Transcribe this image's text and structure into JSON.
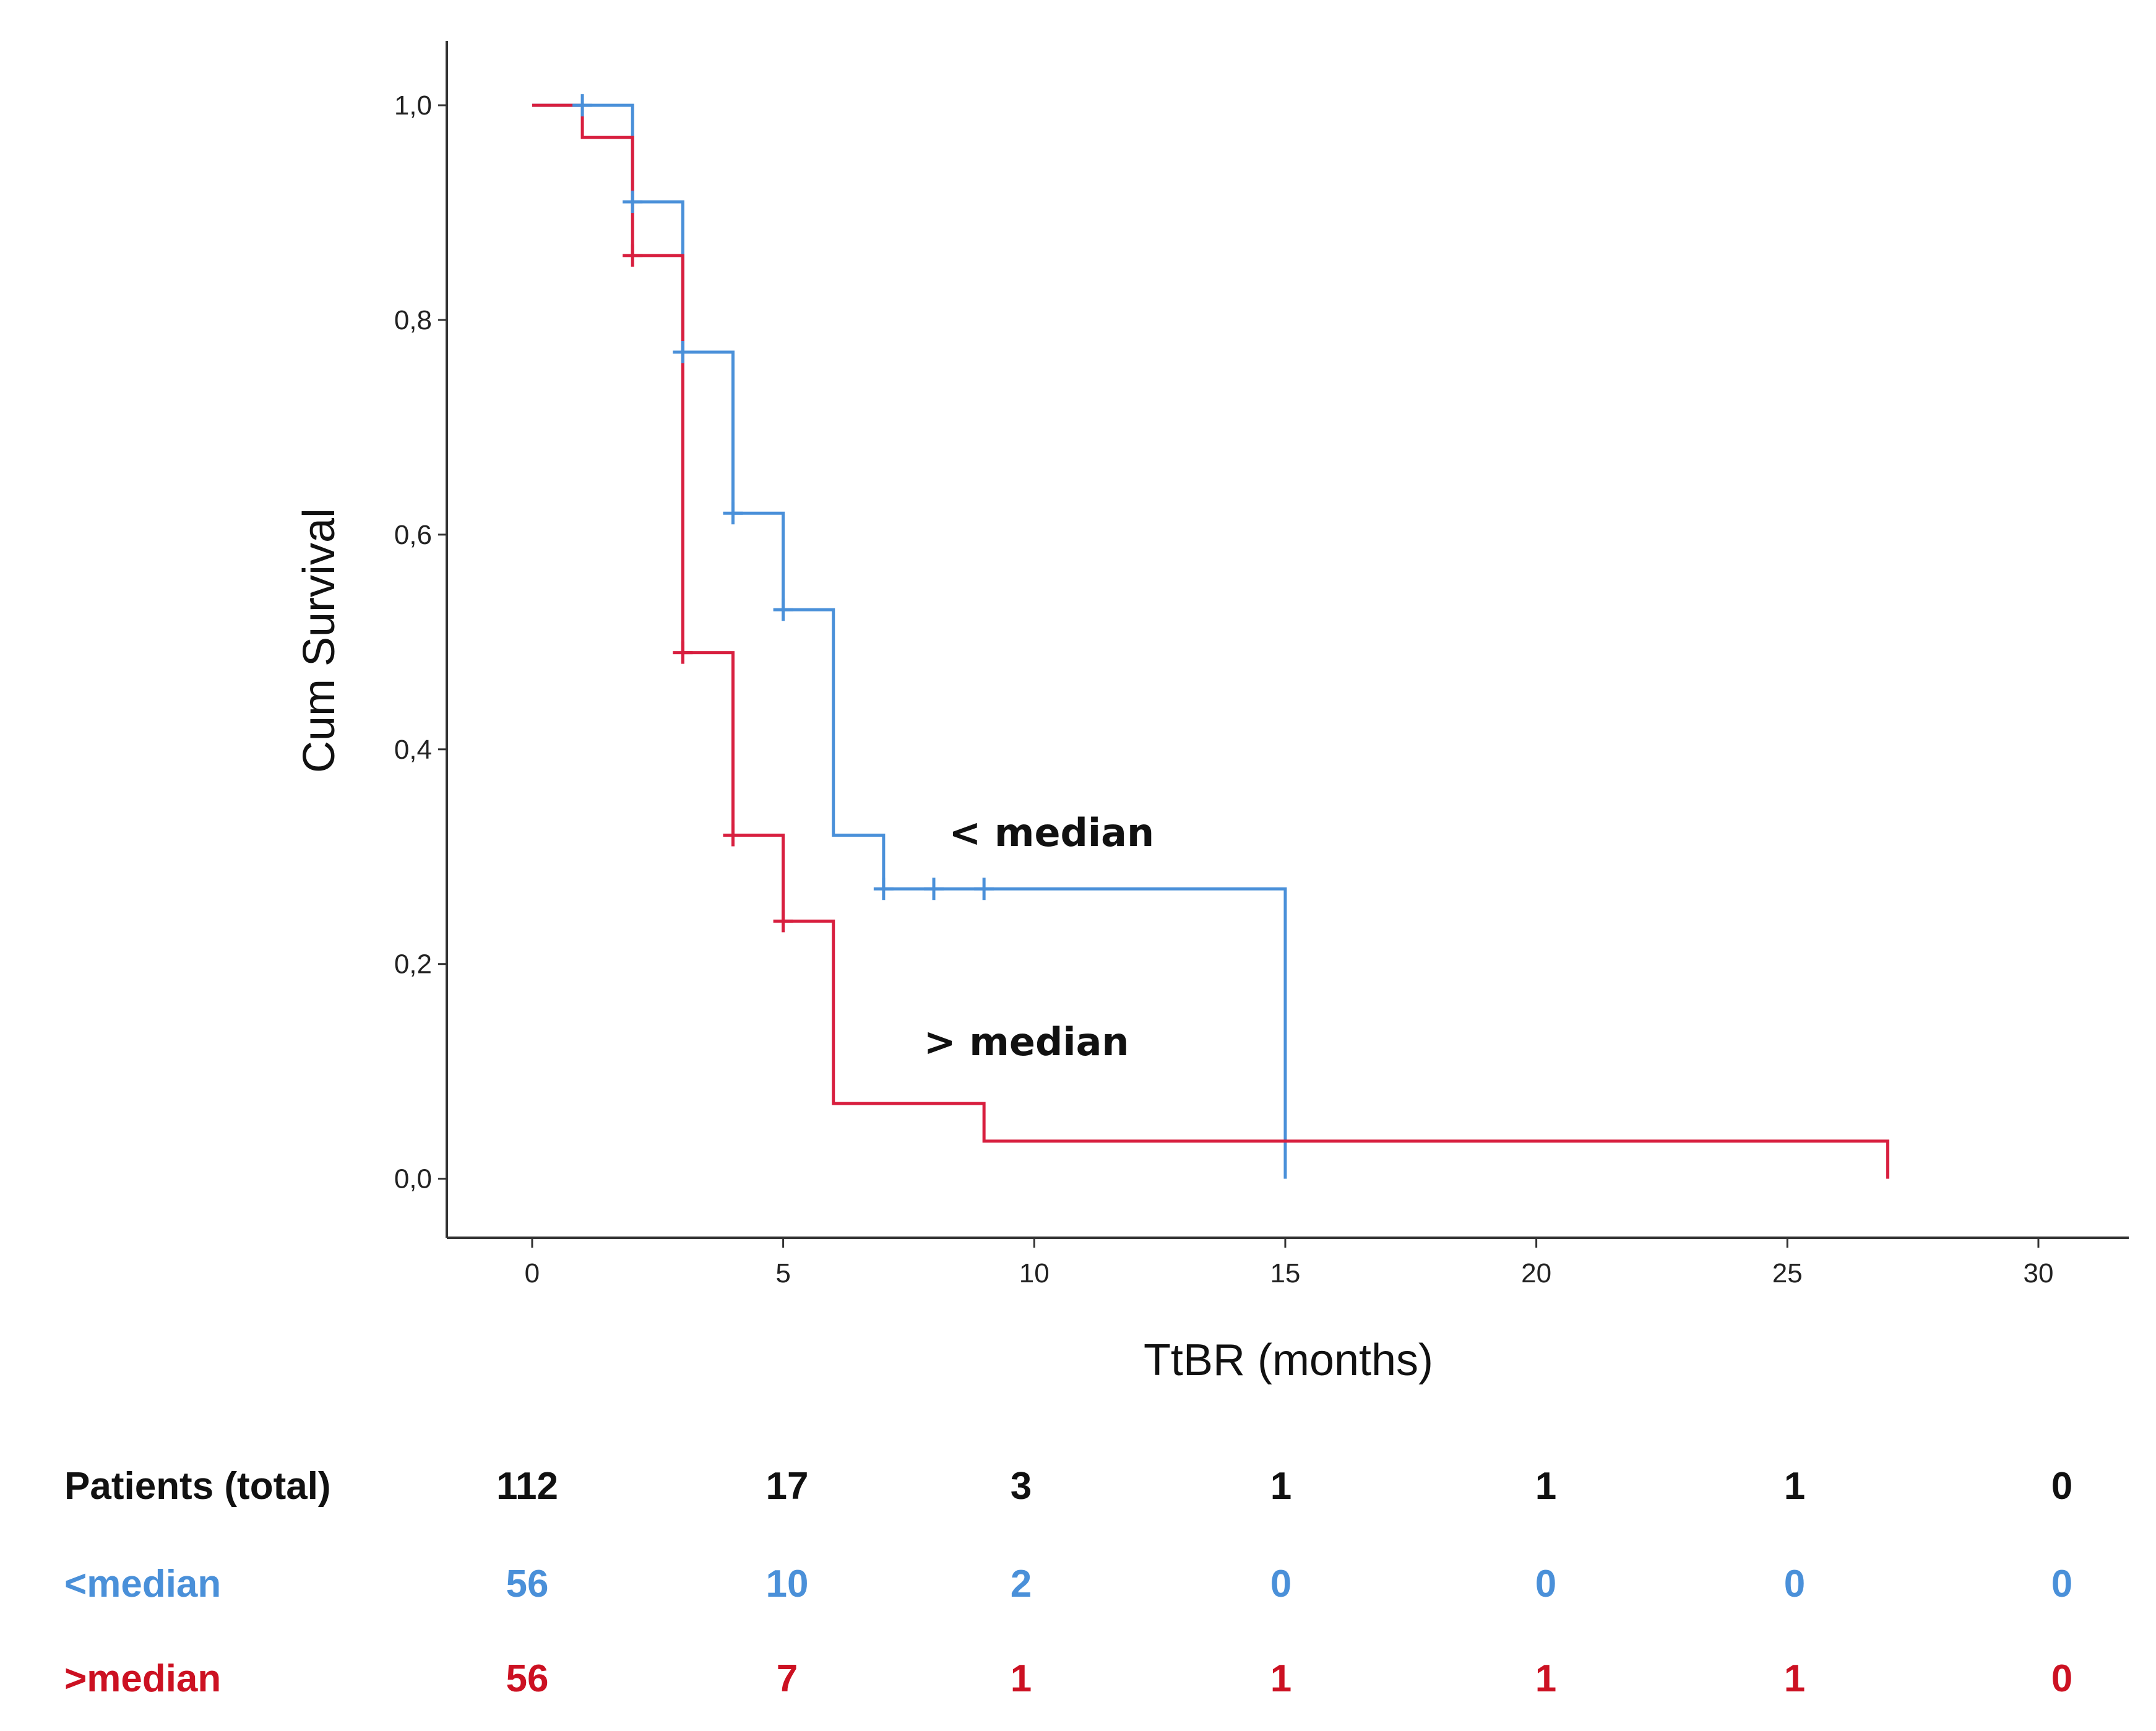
{
  "chart_data": {
    "type": "line",
    "subtype": "kaplan-meier",
    "title": "",
    "xlabel": "TtBR (months)",
    "ylabel": "Cum Survival",
    "xlim": [
      -1.7,
      31.8
    ],
    "ylim": [
      -0.055,
      1.06
    ],
    "xticks": [
      0,
      5,
      10,
      15,
      20,
      25,
      30
    ],
    "xtick_labels": [
      "0",
      "5",
      "10",
      "15",
      "20",
      "25",
      "30"
    ],
    "yticks": [
      0,
      0.2,
      0.4,
      0.6,
      0.8,
      1.0
    ],
    "ytick_labels": [
      "0,0",
      "0,2",
      "0,4",
      "0,6",
      "0,8",
      "1,0"
    ],
    "series": [
      {
        "name": "< median",
        "color": "#4a90d9",
        "steps": [
          [
            0,
            1.0
          ],
          [
            2,
            0.91
          ],
          [
            3,
            0.77
          ],
          [
            4,
            0.62
          ],
          [
            5,
            0.53
          ],
          [
            6,
            0.32
          ],
          [
            7,
            0.27
          ],
          [
            15,
            0.0
          ]
        ],
        "end_x": 15,
        "censored": [
          [
            1,
            1.0
          ],
          [
            2,
            0.91
          ],
          [
            3,
            0.77
          ],
          [
            4,
            0.62
          ],
          [
            5,
            0.53
          ],
          [
            7,
            0.27
          ],
          [
            8,
            0.27
          ],
          [
            9,
            0.27
          ]
        ],
        "annotation": "< median",
        "annotation_at": [
          8.3,
          0.31
        ]
      },
      {
        "name": "> median",
        "color": "#d81f3f",
        "steps": [
          [
            0,
            1.0
          ],
          [
            1,
            0.97
          ],
          [
            2,
            0.86
          ],
          [
            3,
            0.49
          ],
          [
            4,
            0.32
          ],
          [
            5,
            0.24
          ],
          [
            6,
            0.07
          ],
          [
            9,
            0.035
          ],
          [
            27,
            0.0
          ]
        ],
        "end_x": 27,
        "censored": [
          [
            2,
            0.86
          ],
          [
            3,
            0.49
          ],
          [
            4,
            0.32
          ],
          [
            5,
            0.24
          ]
        ],
        "annotation": "> median",
        "annotation_at": [
          7.8,
          0.115
        ]
      }
    ]
  },
  "risk_table": {
    "header_label": "Patients (total)",
    "total": [
      "112",
      "17",
      "3",
      "1",
      "1",
      "1",
      "0"
    ],
    "lt_label": "<median",
    "lt": [
      "56",
      "10",
      "2",
      "0",
      "0",
      "0",
      "0"
    ],
    "gt_label": ">median",
    "gt": [
      "56",
      "7",
      "1",
      "1",
      "1",
      "1",
      "0"
    ],
    "colors": {
      "total": "#111111",
      "lt": "#4a90d9",
      "gt": "#cc1122"
    }
  }
}
